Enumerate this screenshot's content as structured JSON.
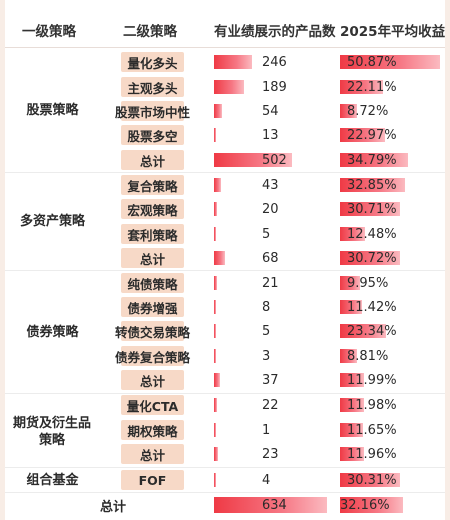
{
  "headers": {
    "level1": "一级策略",
    "level2": "二级策略",
    "count": "有业绩展示的产品数",
    "return": "2025年平均收益"
  },
  "groups": [
    {
      "name": "股票策略"
    },
    {
      "name": "多资产策略"
    },
    {
      "name": "债券策略"
    },
    {
      "name": "期货及衍生品策略"
    },
    {
      "name": "组合基金"
    }
  ],
  "rows": [
    {
      "name": "量化多头",
      "count": 246,
      "count_text": "246",
      "return": 50.87,
      "return_text": "50.87%"
    },
    {
      "name": "主观多头",
      "count": 189,
      "count_text": "189",
      "return": 22.11,
      "return_text": "22.11%"
    },
    {
      "name": "股票市场中性",
      "count": 54,
      "count_text": "54",
      "return": 8.72,
      "return_text": "8.72%"
    },
    {
      "name": "股票多空",
      "count": 13,
      "count_text": "13",
      "return": 22.97,
      "return_text": "22.97%"
    },
    {
      "name": "总计",
      "count": 502,
      "count_text": "502",
      "return": 34.79,
      "return_text": "34.79%"
    },
    {
      "name": "复合策略",
      "count": 43,
      "count_text": "43",
      "return": 32.85,
      "return_text": "32.85%"
    },
    {
      "name": "宏观策略",
      "count": 20,
      "count_text": "20",
      "return": 30.71,
      "return_text": "30.71%"
    },
    {
      "name": "套利策略",
      "count": 5,
      "count_text": "5",
      "return": 12.48,
      "return_text": "12.48%"
    },
    {
      "name": "总计",
      "count": 68,
      "count_text": "68",
      "return": 30.72,
      "return_text": "30.72%"
    },
    {
      "name": "纯债策略",
      "count": 21,
      "count_text": "21",
      "return": 9.95,
      "return_text": "9.95%"
    },
    {
      "name": "债券增强",
      "count": 8,
      "count_text": "8",
      "return": 11.42,
      "return_text": "11.42%"
    },
    {
      "name": "转债交易策略",
      "count": 5,
      "count_text": "5",
      "return": 23.34,
      "return_text": "23.34%"
    },
    {
      "name": "债券复合策略",
      "count": 3,
      "count_text": "3",
      "return": 8.81,
      "return_text": "8.81%"
    },
    {
      "name": "总计",
      "count": 37,
      "count_text": "37",
      "return": 11.99,
      "return_text": "11.99%"
    },
    {
      "name": "量化CTA",
      "count": 22,
      "count_text": "22",
      "return": 11.98,
      "return_text": "11.98%"
    },
    {
      "name": "期权策略",
      "count": 1,
      "count_text": "1",
      "return": 11.65,
      "return_text": "11.65%"
    },
    {
      "name": "总计",
      "count": 23,
      "count_text": "23",
      "return": 11.96,
      "return_text": "11.96%"
    },
    {
      "name": "FOF",
      "count": 4,
      "count_text": "4",
      "return": 30.31,
      "return_text": "30.31%"
    }
  ],
  "grand_total": {
    "label": "总计",
    "count": 634,
    "count_text": "634",
    "return": 32.16,
    "return_text": "32.16%"
  },
  "scale": {
    "count_max": 634,
    "return_max": 50.87
  },
  "colors": {
    "bar_start": "#ef3a45",
    "bar_end": "#fbbac0",
    "tag_bg": "#f7d9c7"
  }
}
